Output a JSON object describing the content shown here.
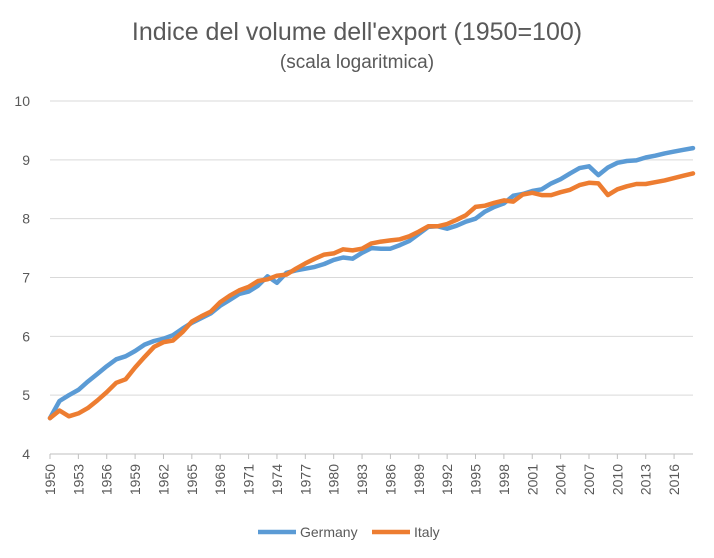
{
  "chart_data": {
    "type": "line",
    "title": "Indice del volume dell'export (1950=100)",
    "subtitle": "(scala logaritmica)",
    "xlabel": "",
    "ylabel": "",
    "ylim": [
      4,
      10
    ],
    "yticks": [
      4,
      5,
      6,
      7,
      8,
      9,
      10
    ],
    "xlim": [
      1950,
      2018
    ],
    "xticks": [
      1950,
      1953,
      1956,
      1959,
      1962,
      1965,
      1968,
      1971,
      1974,
      1977,
      1980,
      1983,
      1986,
      1989,
      1992,
      1995,
      1998,
      2001,
      2004,
      2007,
      2010,
      2013,
      2016
    ],
    "grid": "horizontal",
    "legend_position": "bottom",
    "x": [
      1950,
      1951,
      1952,
      1953,
      1954,
      1955,
      1956,
      1957,
      1958,
      1959,
      1960,
      1961,
      1962,
      1963,
      1964,
      1965,
      1966,
      1967,
      1968,
      1969,
      1970,
      1971,
      1972,
      1973,
      1974,
      1975,
      1976,
      1977,
      1978,
      1979,
      1980,
      1981,
      1982,
      1983,
      1984,
      1985,
      1986,
      1987,
      1988,
      1989,
      1990,
      1991,
      1992,
      1993,
      1994,
      1995,
      1996,
      1997,
      1998,
      1999,
      2000,
      2001,
      2002,
      2003,
      2004,
      2005,
      2006,
      2007,
      2008,
      2009,
      2010,
      2011,
      2012,
      2013,
      2014,
      2015,
      2016,
      2017,
      2018
    ],
    "series": [
      {
        "name": "Germany",
        "color": "#5B9BD5",
        "values": [
          4.61,
          4.9,
          5.0,
          5.09,
          5.23,
          5.36,
          5.49,
          5.61,
          5.66,
          5.75,
          5.86,
          5.92,
          5.96,
          6.02,
          6.13,
          6.23,
          6.31,
          6.39,
          6.52,
          6.62,
          6.72,
          6.76,
          6.86,
          7.02,
          6.91,
          7.08,
          7.12,
          7.15,
          7.18,
          7.23,
          7.3,
          7.34,
          7.32,
          7.42,
          7.5,
          7.49,
          7.49,
          7.55,
          7.62,
          7.74,
          7.86,
          7.87,
          7.83,
          7.88,
          7.95,
          8.0,
          8.12,
          8.2,
          8.26,
          8.39,
          8.42,
          8.47,
          8.5,
          8.6,
          8.67,
          8.77,
          8.86,
          8.89,
          8.74,
          8.87,
          8.95,
          8.98,
          8.99,
          9.04,
          9.07,
          9.11,
          9.14,
          9.17,
          9.2
        ]
      },
      {
        "name": "Italy",
        "color": "#ED7D31",
        "values": [
          4.61,
          4.74,
          4.64,
          4.69,
          4.78,
          4.91,
          5.05,
          5.21,
          5.27,
          5.47,
          5.65,
          5.82,
          5.9,
          5.93,
          6.07,
          6.25,
          6.34,
          6.42,
          6.58,
          6.69,
          6.78,
          6.84,
          6.94,
          6.97,
          7.03,
          7.05,
          7.15,
          7.24,
          7.32,
          7.39,
          7.41,
          7.48,
          7.46,
          7.49,
          7.58,
          7.61,
          7.63,
          7.65,
          7.7,
          7.78,
          7.87,
          7.87,
          7.91,
          7.98,
          8.06,
          8.2,
          8.22,
          8.27,
          8.31,
          8.29,
          8.41,
          8.44,
          8.4,
          8.4,
          8.45,
          8.49,
          8.57,
          8.61,
          8.6,
          8.4,
          8.5,
          8.55,
          8.59,
          8.59,
          8.62,
          8.65,
          8.69,
          8.73,
          8.77
        ]
      }
    ]
  }
}
